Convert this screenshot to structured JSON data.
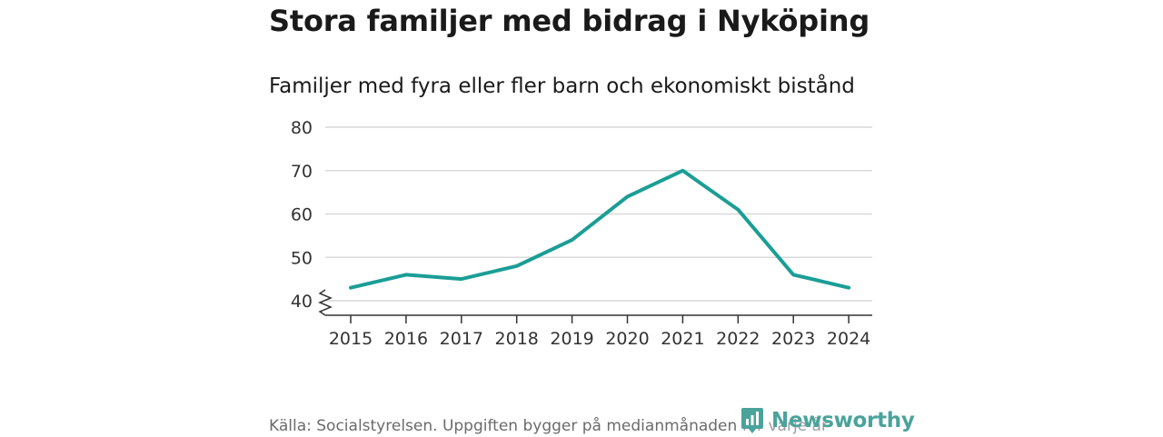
{
  "header": {
    "title": "Stora familjer med bidrag i Nyköping",
    "subtitle": "Familjer med fyra eller fler barn och ekonomiskt bistånd"
  },
  "footer": {
    "source": "Källa: Socialstyrelsen. Uppgiften bygger på medianmånaden för varje år"
  },
  "brand": {
    "name": "Newsworthy",
    "icon": "newsworthy-logo-icon",
    "color": "#4aa39b"
  },
  "chart_data": {
    "type": "line",
    "x": [
      "2015",
      "2016",
      "2017",
      "2018",
      "2019",
      "2020",
      "2021",
      "2022",
      "2023",
      "2024"
    ],
    "series": [
      {
        "values": [
          43,
          46,
          45,
          48,
          54,
          64,
          70,
          61,
          46,
          43
        ],
        "color": "#1a9e96"
      }
    ],
    "yticks": [
      40,
      50,
      60,
      70,
      80
    ],
    "ylim": [
      40,
      80
    ],
    "y_axis_break": true,
    "grid": true,
    "legend": "none"
  }
}
